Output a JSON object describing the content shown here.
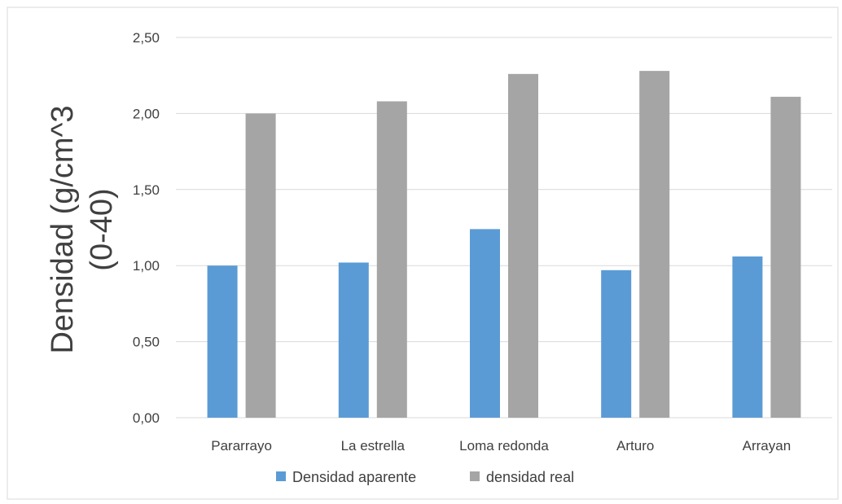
{
  "chart_data": {
    "type": "bar",
    "title": "",
    "xlabel": "",
    "ylabel_lines": [
      "Densidad (g/cm^3",
      "(0-40)"
    ],
    "categories": [
      "Pararrayo",
      "La estrella",
      "Loma redonda",
      "Arturo",
      "Arrayan"
    ],
    "series": [
      {
        "name": "Densidad aparente",
        "color": "#5b9bd5",
        "values": [
          1.0,
          1.02,
          1.24,
          0.97,
          1.06
        ]
      },
      {
        "name": "densidad real",
        "color": "#a5a5a5",
        "values": [
          2.0,
          2.08,
          2.26,
          2.28,
          2.11
        ]
      }
    ],
    "ylim": [
      0,
      2.5
    ],
    "yticks": [
      "0,00",
      "0,50",
      "1,00",
      "1,50",
      "2,00",
      "2,50"
    ],
    "ytick_values": [
      0,
      0.5,
      1.0,
      1.5,
      2.0,
      2.5
    ],
    "grid": true,
    "legend_position": "bottom"
  }
}
